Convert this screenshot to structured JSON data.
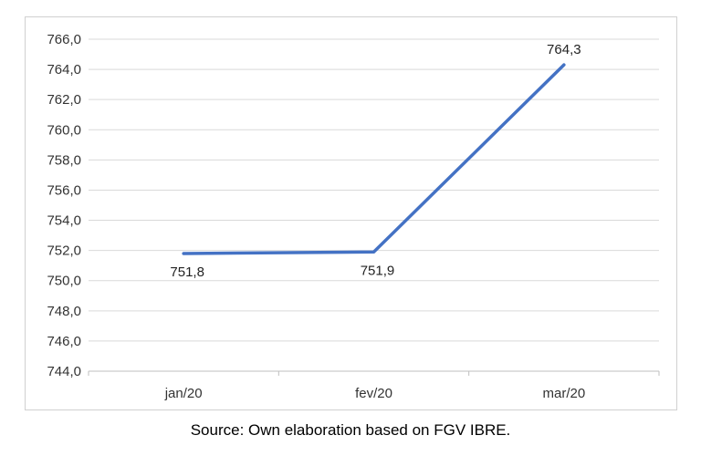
{
  "chart_data": {
    "type": "line",
    "categories": [
      "jan/20",
      "fev/20",
      "mar/20"
    ],
    "series": [
      {
        "values": [
          751.8,
          751.9,
          764.3
        ],
        "color": "#4472c4"
      }
    ],
    "data_labels": [
      "751,8",
      "751,9",
      "764,3"
    ],
    "ylim": [
      744.0,
      766.0
    ],
    "y_ticks": [
      744.0,
      746.0,
      748.0,
      750.0,
      752.0,
      754.0,
      756.0,
      758.0,
      760.0,
      762.0,
      764.0,
      766.0
    ],
    "y_tick_labels": [
      "744,0",
      "746,0",
      "748,0",
      "750,0",
      "752,0",
      "754,0",
      "756,0",
      "758,0",
      "760,0",
      "762,0",
      "764,0",
      "766,0"
    ],
    "grid": true,
    "legend": "none",
    "gridline_color": "#d9d9d9"
  },
  "caption": "Source: Own elaboration based on FGV IBRE."
}
